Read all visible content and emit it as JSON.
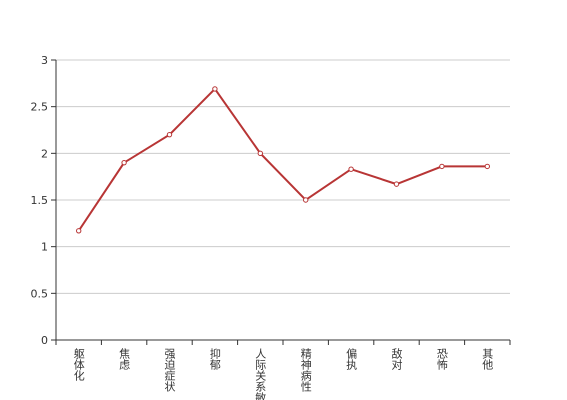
{
  "chart_data": {
    "type": "line",
    "categories": [
      "躯体化",
      "焦虑",
      "强迫症状",
      "抑郁",
      "人际关系敏感",
      "精神病性",
      "偏执",
      "敌对",
      "恐怖",
      "其他"
    ],
    "series": [
      {
        "name": "",
        "color": "#b83535",
        "values": [
          1.17,
          1.9,
          2.2,
          2.69,
          2.0,
          1.5,
          1.83,
          1.67,
          1.86,
          1.86
        ]
      }
    ],
    "ylim": [
      0,
      3
    ],
    "yticks": [
      0,
      0.5,
      1,
      1.5,
      2,
      2.5,
      3
    ],
    "grid": true
  }
}
